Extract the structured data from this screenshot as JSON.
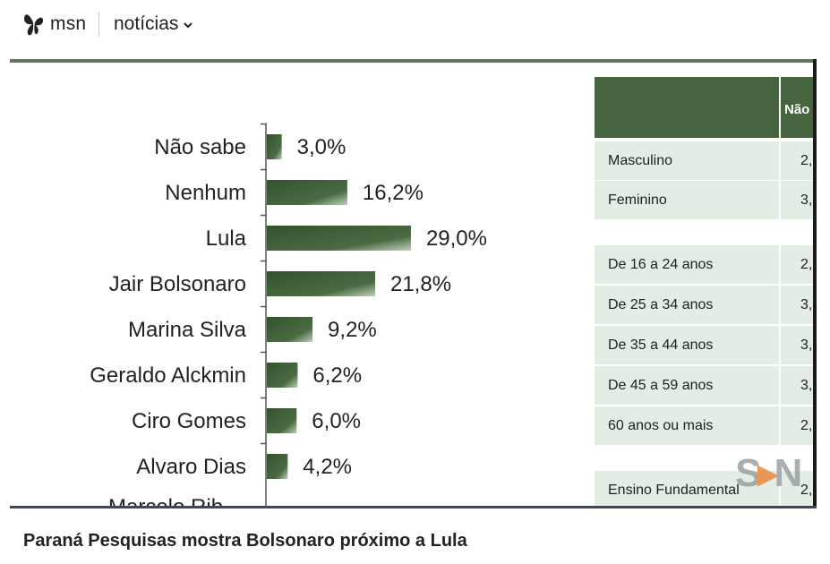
{
  "header": {
    "brand": "msn",
    "nav_label": "notícias"
  },
  "chart_data": {
    "type": "bar",
    "orientation": "horizontal",
    "categories": [
      "Não sabe",
      "Nenhum",
      "Lula",
      "Jair Bolsonaro",
      "Marina Silva",
      "Geraldo Alckmin",
      "Ciro Gomes",
      "Alvaro Dias"
    ],
    "values": [
      3.0,
      16.2,
      29.0,
      21.8,
      9.2,
      6.2,
      6.0,
      4.2
    ],
    "value_labels": [
      "3,0%",
      "16,2%",
      "29,0%",
      "21,8%",
      "9,2%",
      "6,2%",
      "6,0%",
      "4,2%"
    ],
    "bar_color": "#3f5f38",
    "title": "",
    "xlabel": "",
    "ylabel": ""
  },
  "table": {
    "header_col": "Não",
    "rows": [
      {
        "label": "Masculino",
        "value": "2,"
      },
      {
        "label": "Feminino",
        "value": "3,"
      },
      {
        "label": "De 16 a 24 anos",
        "value": "2,"
      },
      {
        "label": "De 25 a 34 anos",
        "value": "3,"
      },
      {
        "label": "De 35 a 44 anos",
        "value": "3,"
      },
      {
        "label": "De 45 a 59 anos",
        "value": "3,"
      },
      {
        "label": "60 anos ou mais",
        "value": "2,"
      },
      {
        "label": "Ensino Fundamental",
        "value": "2,"
      }
    ]
  },
  "watermark": {
    "text": "SN"
  },
  "caption": "Paraná Pesquisas mostra Bolsonaro próximo a Lula"
}
